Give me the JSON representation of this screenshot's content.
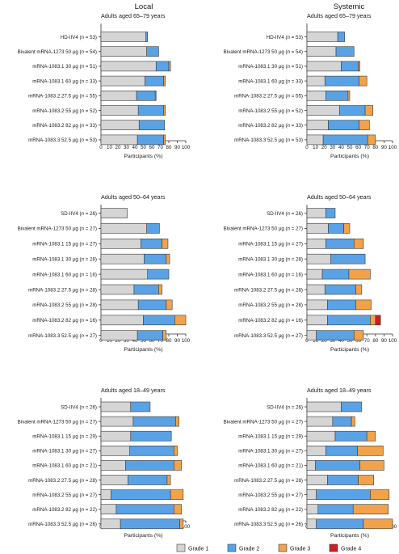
{
  "column_titles": [
    "Local",
    "Systemic"
  ],
  "colors": {
    "Grade 1": "#d5d5d5",
    "Grade 2": "#5aa2e6",
    "Grade 3": "#f2a24a",
    "Grade 4": "#cc1f1f",
    "bar_edge": "#3a3a3a"
  },
  "legend": [
    "Grade 1",
    "Grade 2",
    "Grade 3",
    "Grade 4"
  ],
  "chart_data": [
    {
      "type": "bar",
      "orientation": "horizontal",
      "stacked": true,
      "title": "Adults aged 65–79 years",
      "column": "Local",
      "xlabel": "Participants (%)",
      "xlim": [
        0,
        100
      ],
      "xticks": [
        "0",
        "10",
        "20",
        "30",
        "40",
        "50",
        "60",
        "70",
        "80",
        "90",
        "100"
      ],
      "categories": [
        "HD-IIV4 (n = 53)",
        "Bivalent mRNA-1273 50 µg (n = 54)",
        "mRNA-1083.1 30 µg (n = 51)",
        "mRNA-1083.1 60 µg (n = 33)",
        "mRNA-1083.2 27.5 µg (n = 55)",
        "mRNA-1083.2 55 µg (n = 52)",
        "mRNA-1083.2 82 µg (n = 33)",
        "mRNA-1083.3 52.5 µg (n = 53)"
      ],
      "series": [
        {
          "name": "Grade 1",
          "values": [
            53,
            54,
            65,
            52,
            42,
            44,
            45,
            43
          ]
        },
        {
          "name": "Grade 2",
          "values": [
            2,
            14,
            15,
            22,
            22,
            30,
            30,
            31
          ]
        },
        {
          "name": "Grade 3",
          "values": [
            0,
            0,
            2,
            2,
            1,
            2,
            0,
            2
          ]
        },
        {
          "name": "Grade 4",
          "values": [
            0,
            0,
            0,
            0,
            0,
            0,
            0,
            0
          ]
        }
      ]
    },
    {
      "type": "bar",
      "orientation": "horizontal",
      "stacked": true,
      "title": "Adults aged 65–79 years",
      "column": "Systemic",
      "xlabel": "Participants (%)",
      "xlim": [
        0,
        100
      ],
      "xticks": [
        "0",
        "10",
        "20",
        "30",
        "40",
        "50",
        "60",
        "70",
        "80",
        "90",
        "100"
      ],
      "categories": [
        "HD-IIV4 (n = 53)",
        "Bivalent mRNA-1273 50 µg (n = 54)",
        "mRNA-1083.1 30 µg (n = 51)",
        "mRNA-1083.1 60 µg (n = 33)",
        "mRNA-1083.2 27.5 µg (n = 55)",
        "mRNA-1083.2 55 µg (n = 52)",
        "mRNA-1083.2 82 µg (n = 33)",
        "mRNA-1083.3 52.5 µg (n = 53)"
      ],
      "series": [
        {
          "name": "Grade 1",
          "values": [
            36,
            34,
            40,
            21,
            22,
            38,
            25,
            19
          ]
        },
        {
          "name": "Grade 2",
          "values": [
            8,
            21,
            20,
            40,
            26,
            30,
            36,
            52
          ]
        },
        {
          "name": "Grade 3",
          "values": [
            0,
            0,
            2,
            9,
            2,
            9,
            12,
            9
          ]
        },
        {
          "name": "Grade 4",
          "values": [
            0,
            0,
            0,
            0,
            0,
            0,
            0,
            0
          ]
        }
      ]
    },
    {
      "type": "bar",
      "orientation": "horizontal",
      "stacked": true,
      "title": "Adults aged 50–64 years",
      "column": "Local",
      "xlabel": "Participants (%)",
      "xlim": [
        0,
        100
      ],
      "xticks": [
        "0",
        "10",
        "20",
        "30",
        "40",
        "50",
        "60",
        "70",
        "80",
        "90",
        "100"
      ],
      "categories": [
        "SD-IIV4 (n = 26)",
        "Bivalent mRNA-1273 50 µg (n = 27)",
        "mRNA-1083.1 15 µg (n = 27)",
        "mRNA-1083.1 30 µg (n = 28)",
        "mRNA-1083.1 60 µg (n = 16)",
        "mRNA-1083.2 27.5 µg (n = 28)",
        "mRNA-1083.2 55 µg (n = 28)",
        "mRNA-1083.2 82 µg (n = 16)",
        "mRNA-1083.3 52.5 µg (n = 27)"
      ],
      "series": [
        {
          "name": "Grade 1",
          "values": [
            31,
            54,
            47,
            51,
            55,
            39,
            44,
            50,
            43
          ]
        },
        {
          "name": "Grade 2",
          "values": [
            0,
            15,
            25,
            26,
            25,
            29,
            33,
            37,
            30
          ]
        },
        {
          "name": "Grade 3",
          "values": [
            0,
            0,
            7,
            4,
            0,
            4,
            7,
            13,
            4
          ]
        },
        {
          "name": "Grade 4",
          "values": [
            0,
            0,
            0,
            0,
            0,
            0,
            0,
            0,
            0
          ]
        }
      ]
    },
    {
      "type": "bar",
      "orientation": "horizontal",
      "stacked": true,
      "title": "Adults aged 50–64 years",
      "column": "Systemic",
      "xlabel": "Participants (%)",
      "xlim": [
        0,
        100
      ],
      "xticks": [
        "0",
        "10",
        "20",
        "30",
        "40",
        "50",
        "60",
        "70",
        "80",
        "90",
        "100"
      ],
      "categories": [
        "SD-IIV4 (n = 26)",
        "Bivalent mRNA-1273 50 µg (n = 27)",
        "mRNA-1083.1 15 µg (n = 27)",
        "mRNA-1083.1 30 µg (n = 28)",
        "mRNA-1083.1 60 µg (n = 16)",
        "mRNA-1083.2 27.5 µg (n = 28)",
        "mRNA-1083.2 55 µg (n = 28)",
        "mRNA-1083.2 82 µg (n = 16)",
        "mRNA-1083.3 52.5 µg (n = 27)"
      ],
      "series": [
        {
          "name": "Grade 1",
          "values": [
            22,
            25,
            22,
            28,
            18,
            21,
            24,
            24,
            11
          ]
        },
        {
          "name": "Grade 2",
          "values": [
            11,
            18,
            33,
            40,
            31,
            36,
            33,
            50,
            44
          ]
        },
        {
          "name": "Grade 3",
          "values": [
            0,
            7,
            11,
            0,
            25,
            7,
            18,
            6,
            11
          ]
        },
        {
          "name": "Grade 4",
          "values": [
            0,
            0,
            0,
            0,
            0,
            0,
            0,
            6,
            0
          ]
        }
      ]
    },
    {
      "type": "bar",
      "orientation": "horizontal",
      "stacked": true,
      "title": "Adults aged 18–49 years",
      "column": "Local",
      "xlabel": "Participants (%)",
      "xlim": [
        0,
        100
      ],
      "xticks": [
        "0",
        "10",
        "20",
        "30",
        "40",
        "50",
        "60",
        "70",
        "80",
        "90",
        "100"
      ],
      "categories": [
        "SD-IIV4 (n = 26)",
        "Bivalent mRNA-1273 50 µg (n = 27)",
        "mRNA-1083.1 15 µg (n = 29)",
        "mRNA-1083.1 30 µg (n = 27)",
        "mRNA-1083.1 60 µg (n = 21)",
        "mRNA-1083.2 27.5 µg (n = 28)",
        "mRNA-1083.2 55 µg (n = 27)",
        "mRNA-1083.2 82 µg (n = 22)",
        "mRNA-1083.3 52.5 µg (n = 26)"
      ],
      "series": [
        {
          "name": "Grade 1",
          "values": [
            35,
            38,
            35,
            34,
            29,
            32,
            12,
            18,
            23
          ]
        },
        {
          "name": "Grade 2",
          "values": [
            23,
            50,
            48,
            52,
            57,
            46,
            70,
            68,
            70
          ]
        },
        {
          "name": "Grade 3",
          "values": [
            0,
            4,
            0,
            4,
            9,
            4,
            15,
            9,
            4
          ]
        },
        {
          "name": "Grade 4",
          "values": [
            0,
            0,
            0,
            0,
            0,
            0,
            0,
            0,
            0
          ]
        }
      ]
    },
    {
      "type": "bar",
      "orientation": "horizontal",
      "stacked": true,
      "title": "Adults aged 18–49 years",
      "column": "Systemic",
      "xlabel": "Participants (%)",
      "xlim": [
        0,
        100
      ],
      "xticks": [
        "0",
        "10",
        "20",
        "30",
        "40",
        "50",
        "60",
        "70",
        "80",
        "90",
        "100"
      ],
      "categories": [
        "SD-IIV4 (n = 26)",
        "Bivalent mRNA-1273 50 µg (n = 27)",
        "mRNA-1083.1 15 µg (n = 29)",
        "mRNA-1083.1 30 µg (n = 27)",
        "mRNA-1083.1 60 µg (n = 21)",
        "mRNA-1083.2 27.5 µg (n = 28)",
        "mRNA-1083.2 55 µg (n = 27)",
        "mRNA-1083.2 82 µg (n = 22)",
        "mRNA-1083.3 52.5 µg (n = 26)"
      ],
      "series": [
        {
          "name": "Grade 1",
          "values": [
            40,
            30,
            33,
            22,
            10,
            24,
            11,
            13,
            11
          ]
        },
        {
          "name": "Grade 2",
          "values": [
            24,
            22,
            37,
            37,
            52,
            36,
            63,
            41,
            55
          ]
        },
        {
          "name": "Grade 3",
          "values": [
            0,
            4,
            10,
            30,
            28,
            18,
            22,
            41,
            34
          ]
        },
        {
          "name": "Grade 4",
          "values": [
            0,
            0,
            0,
            0,
            0,
            0,
            0,
            0,
            0
          ]
        }
      ]
    }
  ]
}
